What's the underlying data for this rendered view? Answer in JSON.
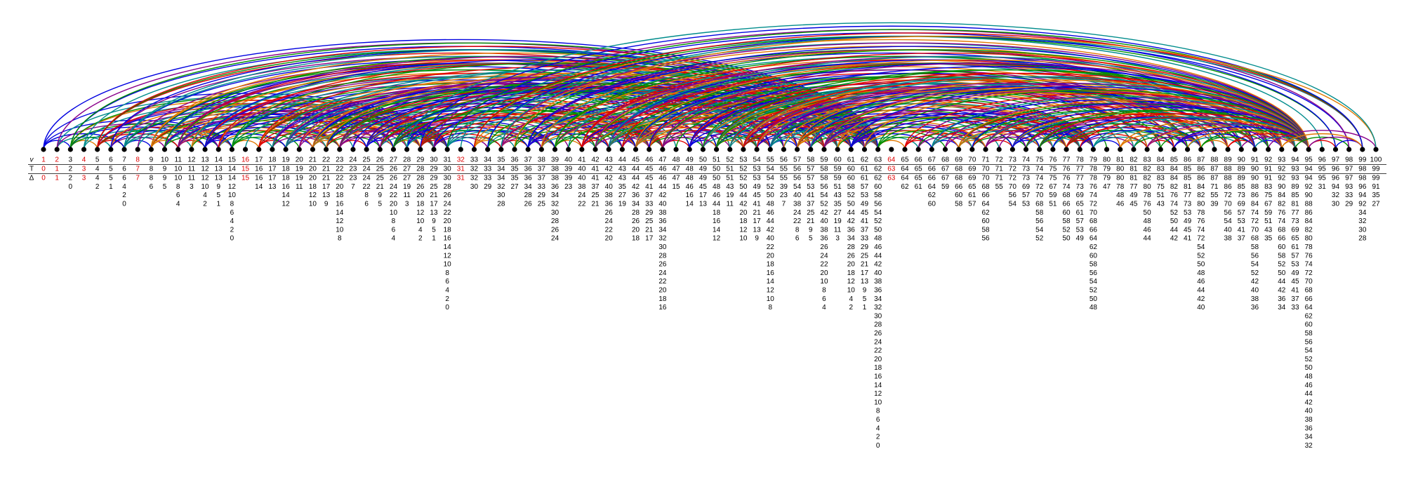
{
  "row_labels": {
    "v": "v",
    "T": "T",
    "delta": "Δ"
  },
  "highlight": [
    1,
    2,
    4,
    8,
    16,
    32,
    64
  ],
  "columns": [
    {
      "v": 1,
      "T": 0,
      "delta": [
        0
      ]
    },
    {
      "v": 2,
      "T": 1,
      "delta": [
        1
      ]
    },
    {
      "v": 3,
      "T": 2,
      "delta": [
        2,
        0
      ]
    },
    {
      "v": 4,
      "T": 3,
      "delta": [
        3
      ]
    },
    {
      "v": 5,
      "T": 4,
      "delta": [
        4,
        2
      ]
    },
    {
      "v": 6,
      "T": 5,
      "delta": [
        5,
        1
      ]
    },
    {
      "v": 7,
      "T": 6,
      "delta": [
        6,
        4,
        2,
        0
      ]
    },
    {
      "v": 8,
      "T": 7,
      "delta": [
        7
      ]
    },
    {
      "v": 9,
      "T": 8,
      "delta": [
        8,
        6
      ]
    },
    {
      "v": 10,
      "T": 9,
      "delta": [
        9,
        5
      ]
    },
    {
      "v": 11,
      "T": 10,
      "delta": [
        10,
        8,
        6,
        4
      ]
    },
    {
      "v": 12,
      "T": 11,
      "delta": [
        11,
        3
      ]
    },
    {
      "v": 13,
      "T": 12,
      "delta": [
        12,
        10,
        4,
        2
      ]
    },
    {
      "v": 14,
      "T": 13,
      "delta": [
        13,
        9,
        5,
        1
      ]
    },
    {
      "v": 15,
      "T": 14,
      "delta": [
        14,
        12,
        10,
        8,
        6,
        4,
        2,
        0
      ]
    },
    {
      "v": 16,
      "T": 15,
      "delta": [
        15
      ]
    },
    {
      "v": 17,
      "T": 16,
      "delta": [
        16,
        14
      ]
    },
    {
      "v": 18,
      "T": 17,
      "delta": [
        17,
        13
      ]
    },
    {
      "v": 19,
      "T": 18,
      "delta": [
        18,
        16,
        14,
        12
      ]
    },
    {
      "v": 20,
      "T": 19,
      "delta": [
        19,
        11
      ]
    },
    {
      "v": 21,
      "T": 20,
      "delta": [
        20,
        18,
        12,
        10
      ]
    },
    {
      "v": 22,
      "T": 21,
      "delta": [
        21,
        17,
        13,
        9
      ]
    },
    {
      "v": 23,
      "T": 22,
      "delta": [
        22,
        20,
        18,
        16,
        14,
        12,
        10,
        8
      ]
    },
    {
      "v": 24,
      "T": 23,
      "delta": [
        23,
        7
      ]
    },
    {
      "v": 25,
      "T": 24,
      "delta": [
        24,
        22,
        8,
        6
      ]
    },
    {
      "v": 26,
      "T": 25,
      "delta": [
        25,
        21,
        9,
        5
      ]
    },
    {
      "v": 27,
      "T": 26,
      "delta": [
        26,
        24,
        22,
        20,
        10,
        8,
        6,
        4
      ]
    },
    {
      "v": 28,
      "T": 27,
      "delta": [
        27,
        19,
        11,
        3
      ]
    },
    {
      "v": 29,
      "T": 28,
      "delta": [
        28,
        26,
        20,
        18,
        12,
        10,
        4,
        2
      ]
    },
    {
      "v": 30,
      "T": 29,
      "delta": [
        29,
        25,
        21,
        17,
        13,
        9,
        5,
        1
      ]
    },
    {
      "v": 31,
      "T": 30,
      "delta": [
        30,
        28,
        26,
        24,
        22,
        20,
        18,
        16,
        14,
        12,
        10,
        8,
        6,
        4,
        2,
        0
      ]
    },
    {
      "v": 32,
      "T": 31,
      "delta": [
        31
      ]
    },
    {
      "v": 33,
      "T": 32,
      "delta": [
        32,
        30
      ]
    },
    {
      "v": 34,
      "T": 33,
      "delta": [
        33,
        29
      ]
    },
    {
      "v": 35,
      "T": 34,
      "delta": [
        34,
        32,
        30,
        28
      ]
    },
    {
      "v": 36,
      "T": 35,
      "delta": [
        35,
        27
      ]
    },
    {
      "v": 37,
      "T": 36,
      "delta": [
        36,
        34,
        28,
        26
      ]
    },
    {
      "v": 38,
      "T": 37,
      "delta": [
        37,
        33,
        29,
        25
      ]
    },
    {
      "v": 39,
      "T": 38,
      "delta": [
        38,
        36,
        34,
        32,
        30,
        28,
        26,
        24
      ]
    },
    {
      "v": 40,
      "T": 39,
      "delta": [
        39,
        23
      ]
    },
    {
      "v": 41,
      "T": 40,
      "delta": [
        40,
        38,
        24,
        22
      ]
    },
    {
      "v": 42,
      "T": 41,
      "delta": [
        41,
        37,
        25,
        21
      ]
    },
    {
      "v": 43,
      "T": 42,
      "delta": [
        42,
        40,
        38,
        36,
        26,
        24,
        22,
        20
      ]
    },
    {
      "v": 44,
      "T": 43,
      "delta": [
        43,
        35,
        27,
        19
      ]
    },
    {
      "v": 45,
      "T": 44,
      "delta": [
        44,
        42,
        36,
        34,
        28,
        26,
        20,
        18
      ]
    },
    {
      "v": 46,
      "T": 45,
      "delta": [
        45,
        41,
        37,
        33,
        29,
        25,
        21,
        17
      ]
    },
    {
      "v": 47,
      "T": 46,
      "delta": [
        46,
        44,
        42,
        40,
        38,
        36,
        34,
        32,
        30,
        28,
        26,
        24,
        22,
        20,
        18,
        16
      ]
    },
    {
      "v": 48,
      "T": 47,
      "delta": [
        47,
        15
      ]
    },
    {
      "v": 49,
      "T": 48,
      "delta": [
        48,
        46,
        16,
        14
      ]
    },
    {
      "v": 50,
      "T": 49,
      "delta": [
        49,
        45,
        17,
        13
      ]
    },
    {
      "v": 51,
      "T": 50,
      "delta": [
        50,
        48,
        46,
        44,
        18,
        16,
        14,
        12
      ]
    },
    {
      "v": 52,
      "T": 51,
      "delta": [
        51,
        43,
        19,
        11
      ]
    },
    {
      "v": 53,
      "T": 52,
      "delta": [
        52,
        50,
        44,
        42,
        20,
        18,
        12,
        10
      ]
    },
    {
      "v": 54,
      "T": 53,
      "delta": [
        53,
        49,
        45,
        41,
        21,
        17,
        13,
        9
      ]
    },
    {
      "v": 55,
      "T": 54,
      "delta": [
        54,
        52,
        50,
        48,
        46,
        44,
        42,
        40,
        22,
        20,
        18,
        16,
        14,
        12,
        10,
        8
      ]
    },
    {
      "v": 56,
      "T": 55,
      "delta": [
        55,
        39,
        23,
        7
      ]
    },
    {
      "v": 57,
      "T": 56,
      "delta": [
        56,
        54,
        40,
        38,
        24,
        22,
        8,
        6
      ]
    },
    {
      "v": 58,
      "T": 57,
      "delta": [
        57,
        53,
        41,
        37,
        25,
        21,
        9,
        5
      ]
    },
    {
      "v": 59,
      "T": 58,
      "delta": [
        58,
        56,
        54,
        52,
        42,
        40,
        38,
        36,
        26,
        24,
        22,
        20,
        10,
        8,
        6,
        4
      ]
    },
    {
      "v": 60,
      "T": 59,
      "delta": [
        59,
        51,
        43,
        35,
        27,
        19,
        11,
        3
      ]
    },
    {
      "v": 61,
      "T": 60,
      "delta": [
        60,
        58,
        52,
        50,
        44,
        42,
        36,
        34,
        28,
        26,
        20,
        18,
        12,
        10,
        4,
        2
      ]
    },
    {
      "v": 62,
      "T": 61,
      "delta": [
        61,
        57,
        53,
        49,
        45,
        41,
        37,
        33,
        29,
        25,
        21,
        17,
        13,
        9,
        5,
        1
      ]
    },
    {
      "v": 63,
      "T": 62,
      "delta": [
        62,
        60,
        58,
        56,
        54,
        52,
        50,
        48,
        46,
        44,
        42,
        40,
        38,
        36,
        34,
        32,
        30,
        28,
        26,
        24,
        22,
        20,
        18,
        16,
        14,
        12,
        10,
        8,
        6,
        4,
        2,
        0
      ]
    },
    {
      "v": 64,
      "T": 63,
      "delta": [
        63
      ]
    },
    {
      "v": 65,
      "T": 64,
      "delta": [
        64,
        62
      ]
    },
    {
      "v": 66,
      "T": 65,
      "delta": [
        65,
        61
      ]
    },
    {
      "v": 67,
      "T": 66,
      "delta": [
        66,
        64,
        62,
        60
      ]
    },
    {
      "v": 68,
      "T": 67,
      "delta": [
        67,
        59
      ]
    },
    {
      "v": 69,
      "T": 68,
      "delta": [
        68,
        66,
        60,
        58
      ]
    },
    {
      "v": 70,
      "T": 69,
      "delta": [
        69,
        65,
        61,
        57
      ]
    },
    {
      "v": 71,
      "T": 70,
      "delta": [
        70,
        68,
        66,
        64,
        62,
        60,
        58,
        56
      ]
    },
    {
      "v": 72,
      "T": 71,
      "delta": [
        71,
        55
      ]
    },
    {
      "v": 73,
      "T": 72,
      "delta": [
        72,
        70,
        56,
        54
      ]
    },
    {
      "v": 74,
      "T": 73,
      "delta": [
        73,
        69,
        57,
        53
      ]
    },
    {
      "v": 75,
      "T": 74,
      "delta": [
        74,
        72,
        70,
        68,
        58,
        56,
        54,
        52
      ]
    },
    {
      "v": 76,
      "T": 75,
      "delta": [
        75,
        67,
        59,
        51
      ]
    },
    {
      "v": 77,
      "T": 76,
      "delta": [
        76,
        74,
        68,
        66,
        60,
        58,
        52,
        50
      ]
    },
    {
      "v": 78,
      "T": 77,
      "delta": [
        77,
        73,
        69,
        65,
        61,
        57,
        53,
        49
      ]
    },
    {
      "v": 79,
      "T": 78,
      "delta": [
        78,
        76,
        74,
        72,
        70,
        68,
        66,
        64,
        62,
        60,
        58,
        56,
        54,
        52,
        50,
        48
      ]
    },
    {
      "v": 80,
      "T": 79,
      "delta": [
        79,
        47
      ]
    },
    {
      "v": 81,
      "T": 80,
      "delta": [
        80,
        78,
        48,
        46
      ]
    },
    {
      "v": 82,
      "T": 81,
      "delta": [
        81,
        77,
        49,
        45
      ]
    },
    {
      "v": 83,
      "T": 82,
      "delta": [
        82,
        80,
        78,
        76,
        50,
        48,
        46,
        44
      ]
    },
    {
      "v": 84,
      "T": 83,
      "delta": [
        83,
        75,
        51,
        43
      ]
    },
    {
      "v": 85,
      "T": 84,
      "delta": [
        84,
        82,
        76,
        74,
        52,
        50,
        44,
        42
      ]
    },
    {
      "v": 86,
      "T": 85,
      "delta": [
        85,
        81,
        77,
        73,
        53,
        49,
        45,
        41
      ]
    },
    {
      "v": 87,
      "T": 86,
      "delta": [
        86,
        84,
        82,
        80,
        78,
        76,
        74,
        72,
        54,
        52,
        50,
        48,
        46,
        44,
        42,
        40
      ]
    },
    {
      "v": 88,
      "T": 87,
      "delta": [
        87,
        71,
        55,
        39
      ]
    },
    {
      "v": 89,
      "T": 88,
      "delta": [
        88,
        86,
        72,
        70,
        56,
        54,
        40,
        38
      ]
    },
    {
      "v": 90,
      "T": 89,
      "delta": [
        89,
        85,
        73,
        69,
        57,
        53,
        41,
        37
      ]
    },
    {
      "v": 91,
      "T": 90,
      "delta": [
        90,
        88,
        86,
        84,
        74,
        72,
        70,
        68,
        58,
        56,
        54,
        52,
        42,
        40,
        38,
        36
      ]
    },
    {
      "v": 92,
      "T": 91,
      "delta": [
        91,
        83,
        75,
        67,
        59,
        51,
        43,
        35
      ]
    },
    {
      "v": 93,
      "T": 92,
      "delta": [
        92,
        90,
        84,
        82,
        76,
        74,
        68,
        66,
        60,
        58,
        52,
        50,
        44,
        42,
        36,
        34
      ]
    },
    {
      "v": 94,
      "T": 93,
      "delta": [
        93,
        89,
        85,
        81,
        77,
        73,
        69,
        65,
        61,
        57,
        53,
        49,
        45,
        41,
        37,
        33
      ]
    },
    {
      "v": 95,
      "T": 94,
      "delta": [
        94,
        92,
        90,
        88,
        86,
        84,
        82,
        80,
        78,
        76,
        74,
        72,
        70,
        68,
        66,
        64,
        62,
        60,
        58,
        56,
        54,
        52,
        50,
        48,
        46,
        44,
        42,
        40,
        38,
        36,
        34,
        32
      ]
    },
    {
      "v": 96,
      "T": 95,
      "delta": [
        95,
        31
      ]
    },
    {
      "v": 97,
      "T": 96,
      "delta": [
        96,
        94,
        32,
        30
      ]
    },
    {
      "v": 98,
      "T": 97,
      "delta": [
        97,
        93,
        33,
        29
      ]
    },
    {
      "v": 99,
      "T": 98,
      "delta": [
        98,
        96,
        94,
        92,
        34,
        32,
        30,
        28
      ]
    },
    {
      "v": 100,
      "T": 99,
      "delta": [
        99,
        91,
        35,
        27
      ]
    }
  ]
}
